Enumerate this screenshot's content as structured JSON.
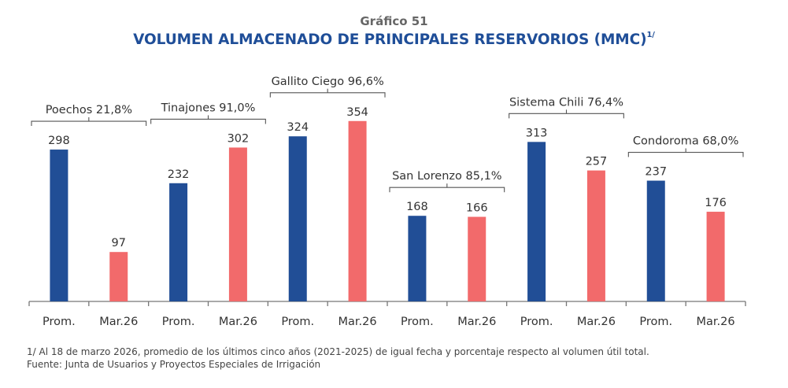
{
  "chart_data": {
    "type": "bar",
    "subtitle": "Gráfico 51",
    "title": "VOLUMEN ALMACENADO DE PRINCIPALES RESERVORIOS (MMC)",
    "title_superscript": "1/",
    "xlabel": "",
    "ylabel": "",
    "ylim": [
      0,
      400
    ],
    "grid": false,
    "groups": [
      {
        "name": "Poechos",
        "pct": "21,8%",
        "label": "Poechos 21,8%"
      },
      {
        "name": "Tinajones",
        "pct": "91,0%",
        "label": "Tinajones 91,0%"
      },
      {
        "name": "Gallito Ciego",
        "pct": "96,6%",
        "label": "Gallito Ciego 96,6%"
      },
      {
        "name": "San Lorenzo",
        "pct": "85,1%",
        "label": "San Lorenzo 85,1%"
      },
      {
        "name": "Sistema Chili",
        "pct": "76,4%",
        "label": "Sistema Chili 76,4%"
      },
      {
        "name": "Condoroma",
        "pct": "68,0%",
        "label": "Condoroma 68,0%"
      }
    ],
    "categories": [
      "Prom.",
      "Mar.26"
    ],
    "series": [
      {
        "name": "Prom.",
        "color": "#214e96",
        "values": [
          298,
          232,
          324,
          168,
          313,
          237
        ]
      },
      {
        "name": "Mar.26",
        "color": "#f26a6b",
        "values": [
          97,
          302,
          354,
          166,
          257,
          176
        ]
      }
    ]
  },
  "footnotes": {
    "note1": "1/ Al 18 de marzo 2026, promedio de los últimos cinco años (2021-2025) de igual fecha y porcentaje respecto al volumen útil total.",
    "source": "Fuente: Junta de Usuarios y Proyectos Especiales de Irrigación"
  }
}
